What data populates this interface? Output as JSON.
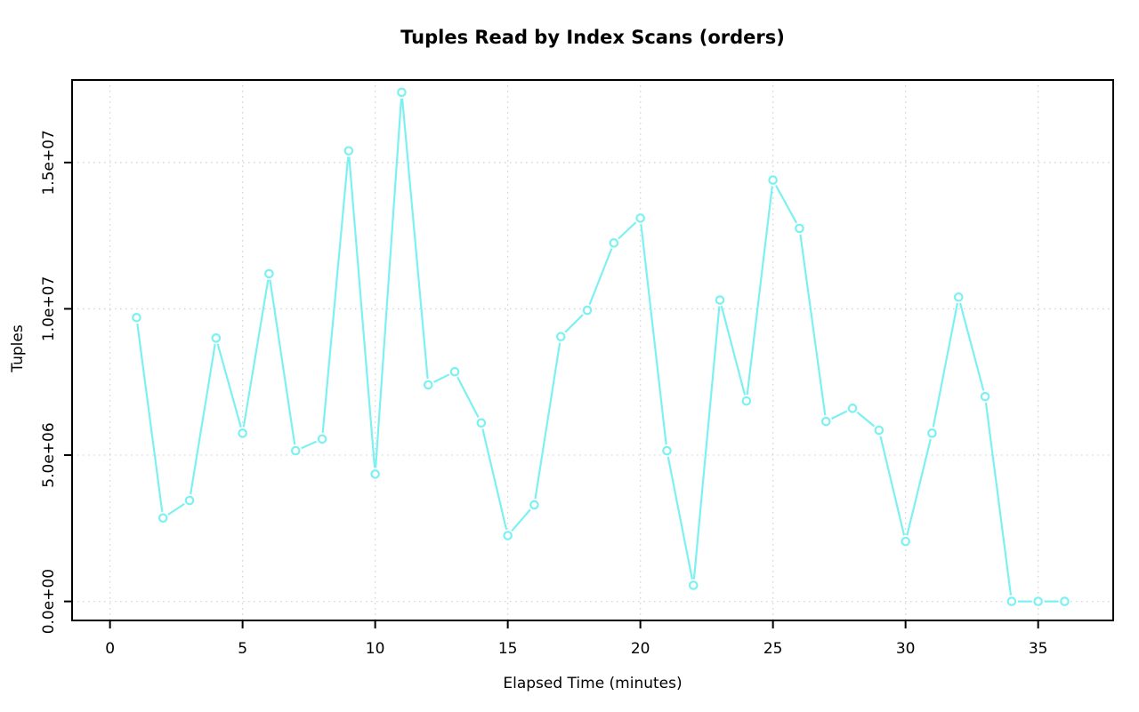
{
  "chart_data": {
    "type": "line",
    "title": "Tuples Read by Index Scans (orders)",
    "xlabel": "Elapsed Time (minutes)",
    "ylabel": "Tuples",
    "x": [
      1,
      2,
      3,
      4,
      5,
      6,
      7,
      8,
      9,
      10,
      11,
      12,
      13,
      14,
      15,
      16,
      17,
      18,
      19,
      20,
      21,
      22,
      23,
      24,
      25,
      26,
      27,
      28,
      29,
      30,
      31,
      32,
      33,
      34,
      35,
      36
    ],
    "values": [
      9700000,
      2850000,
      3450000,
      9000000,
      5750000,
      11200000,
      5150000,
      5550000,
      15400000,
      4350000,
      17400000,
      7400000,
      7850000,
      6100000,
      2250000,
      3300000,
      9050000,
      9950000,
      12250000,
      13100000,
      5150000,
      550000,
      10300000,
      6850000,
      14400000,
      12750000,
      6150000,
      6600000,
      5850000,
      2050000,
      5750000,
      10400000,
      7000000,
      0,
      0,
      0
    ],
    "x_ticks": [
      0,
      5,
      10,
      15,
      20,
      25,
      30,
      35
    ],
    "y_ticks": [
      {
        "value": 0,
        "label": "0.0e+00"
      },
      {
        "value": 5000000,
        "label": "5.0e+06"
      },
      {
        "value": 10000000,
        "label": "1.0e+07"
      },
      {
        "value": 15000000,
        "label": "1.5e+07"
      }
    ],
    "xlim": [
      -1.43,
      37.83
    ],
    "ylim": [
      -650000,
      17820000
    ],
    "grid": true,
    "grid_style": "dotted",
    "legend": false,
    "marker": "open-circle",
    "colors": {
      "series": "#7DF1F1",
      "grid": "#D6D6D6",
      "axis": "#000000",
      "text": "#000000",
      "background": "#FFFFFF"
    }
  }
}
